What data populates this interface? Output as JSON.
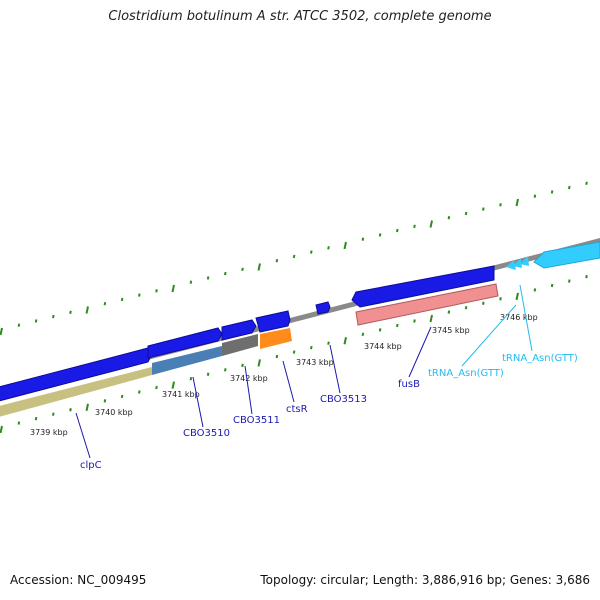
{
  "title": "Clostridium botulinum A str. ATCC 3502, complete genome",
  "footer": {
    "accession": "Accession: NC_009495",
    "topology": "Topology: circular; Length: 3,886,916 bp; Genes: 3,686"
  },
  "colors": {
    "cds": "#1a1ae6",
    "cds_edge": "#0c0c9a",
    "rrna": "#f09090",
    "rrna_edge": "#b05a5a",
    "trna": "#33ccff",
    "backbone": "#8a8a8a",
    "ticks": "#2e8b1e",
    "label_cds": "#1a1ab0",
    "label_trna": "#22bbee",
    "segment_olive": "#c8c080",
    "segment_steel": "#4a7fb5",
    "segment_gray": "#6e6e6e",
    "segment_orange": "#ff8c1a"
  },
  "scale_labels": [
    {
      "text": "3739 kbp"
    },
    {
      "text": "3740 kbp"
    },
    {
      "text": "3741 kbp"
    },
    {
      "text": "3742 kbp"
    },
    {
      "text": "3743 kbp"
    },
    {
      "text": "3744 kbp"
    },
    {
      "text": "3745 kbp"
    },
    {
      "text": "3746 kbp"
    }
  ],
  "gene_labels": [
    {
      "text": "clpC",
      "kind": "cds"
    },
    {
      "text": "CBO3510",
      "kind": "cds"
    },
    {
      "text": "CBO3511",
      "kind": "cds"
    },
    {
      "text": "ctsR",
      "kind": "cds"
    },
    {
      "text": "CBO3513",
      "kind": "cds"
    },
    {
      "text": "fusB",
      "kind": "cds"
    },
    {
      "text": "tRNA_Asn(GTT)",
      "kind": "trna"
    },
    {
      "text": "tRNA_Asn(GTT)",
      "kind": "trna"
    }
  ]
}
